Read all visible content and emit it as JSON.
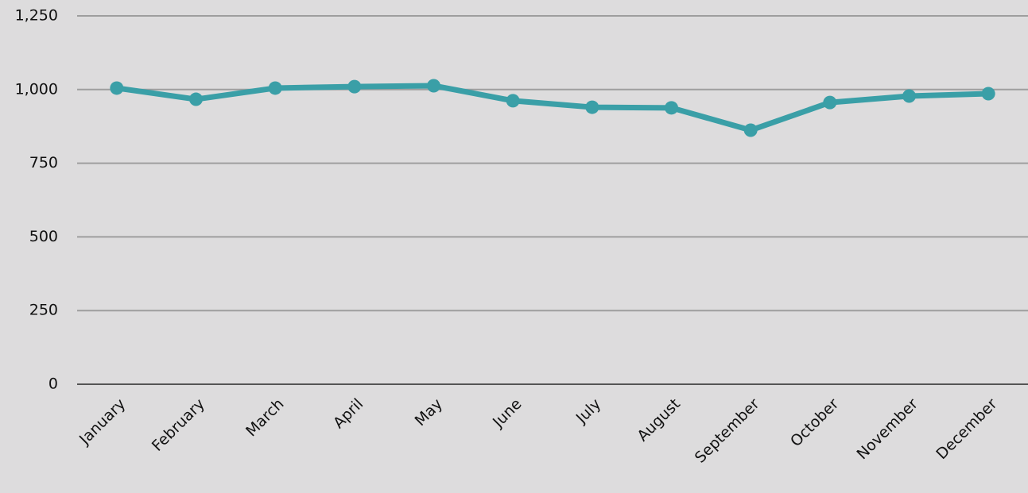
{
  "chart_data": {
    "type": "line",
    "categories": [
      "January",
      "February",
      "March",
      "April",
      "May",
      "June",
      "July",
      "August",
      "September",
      "October",
      "November",
      "December"
    ],
    "series": [
      {
        "color": "#3a9fa7",
        "values": [
          1005,
          967,
          1005,
          1010,
          1013,
          962,
          940,
          938,
          862,
          956,
          978,
          986
        ]
      }
    ],
    "ylim": [
      0,
      1250
    ],
    "yticks": [
      0,
      250,
      500,
      750,
      {
        "value": 1000,
        "label": "1,000"
      },
      {
        "value": 1250,
        "label": "1,250"
      }
    ],
    "grid": true
  }
}
